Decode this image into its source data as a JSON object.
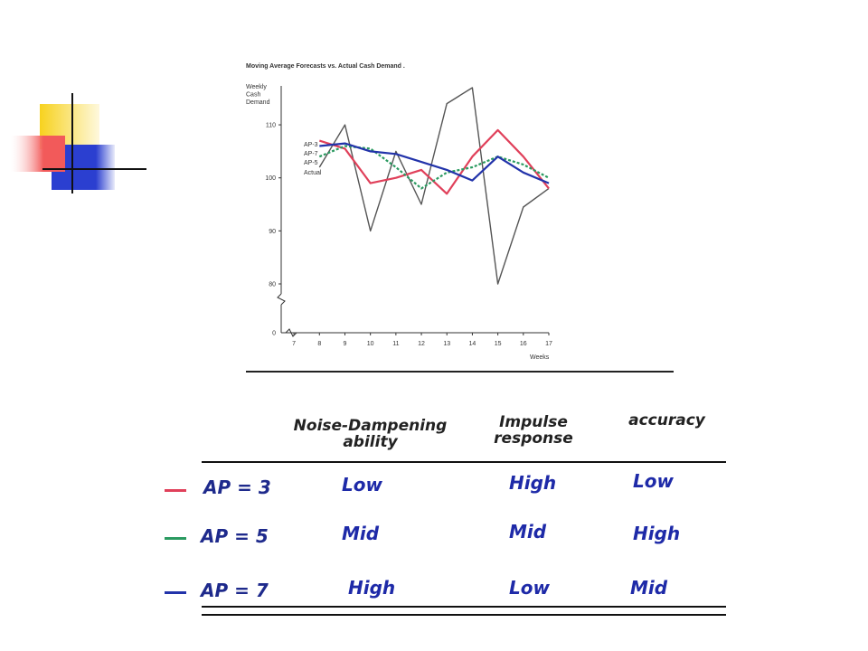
{
  "colors": {
    "ap3": "#e0405a",
    "ap5": "#2a9a60",
    "ap7": "#2233aa",
    "actual": "#555555",
    "ornament_yellow": "#f7d21e",
    "ornament_red": "#f25a5a",
    "ornament_blue": "#2b3fd0"
  },
  "chart_data": {
    "type": "line",
    "title": "Moving Average Forecasts vs. Actual Cash Demand .",
    "ylabel": "Weekly Cash Demand",
    "ylabel_lines": [
      "Weekly",
      "Cash",
      "Demand"
    ],
    "xlabel": "Weeks",
    "x": [
      7,
      8,
      9,
      10,
      11,
      12,
      13,
      14,
      15,
      16,
      17
    ],
    "xlim": [
      6.5,
      17
    ],
    "ylim": [
      75,
      118
    ],
    "y_axis_break": true,
    "yticks": [
      110,
      100,
      90,
      80
    ],
    "y_zero_label": "0",
    "grid": false,
    "legend_placement": "inline-left",
    "series": [
      {
        "name": "AP-3",
        "color_key": "ap3",
        "style": "solid",
        "x": [
          8,
          9,
          10,
          11,
          12,
          13,
          14,
          15,
          16,
          17
        ],
        "values": [
          107,
          105.5,
          99,
          100,
          101.5,
          97,
          104,
          109,
          104,
          98
        ]
      },
      {
        "name": "AP-7",
        "color_key": "ap7",
        "style": "solid",
        "x": [
          8,
          9,
          10,
          11,
          12,
          13,
          14,
          15,
          16,
          17
        ],
        "values": [
          106,
          106.5,
          105,
          104.5,
          103,
          101.5,
          99.5,
          104,
          101,
          99
        ]
      },
      {
        "name": "AP-5",
        "color_key": "ap5",
        "style": "dashed",
        "x": [
          8,
          9,
          10,
          11,
          12,
          13,
          14,
          15,
          16,
          17
        ],
        "values": [
          104,
          106,
          105.5,
          102,
          98,
          101,
          102,
          104,
          102.5,
          100
        ]
      },
      {
        "name": "Actual",
        "color_key": "actual",
        "style": "solid",
        "x": [
          8,
          9,
          10,
          11,
          12,
          13,
          14,
          15,
          16,
          17
        ],
        "values": [
          102,
          110,
          90,
          105,
          95,
          114,
          117,
          80,
          94.5,
          98
        ]
      }
    ]
  },
  "table": {
    "headers": {
      "noise_line1": "Noise-Dampening",
      "noise_line2": "ability",
      "impulse_line1": "Impulse",
      "impulse_line2": "response",
      "accuracy": "accuracy"
    },
    "rows": [
      {
        "label": "AP = 3",
        "color_key": "ap3",
        "noise": "Low",
        "impulse": "High",
        "accuracy": "Low"
      },
      {
        "label": "AP = 5",
        "color_key": "ap5",
        "noise": "Mid",
        "impulse": "Mid",
        "accuracy": "High"
      },
      {
        "label": "AP = 7",
        "color_key": "ap7",
        "noise": "High",
        "impulse": "Low",
        "accuracy": "Mid"
      }
    ]
  }
}
